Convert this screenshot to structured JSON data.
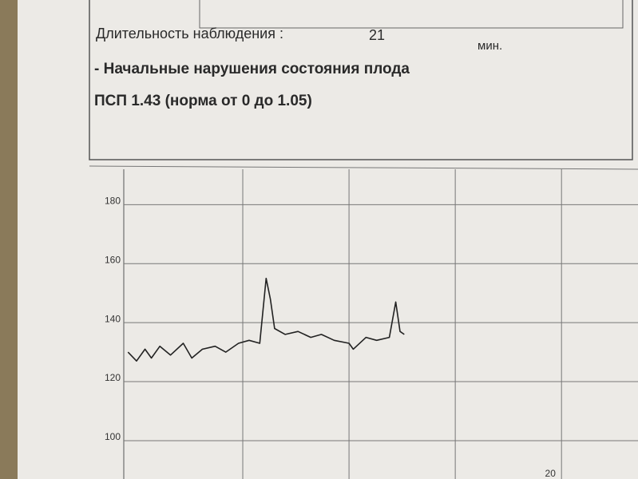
{
  "header": {
    "duration_label": "Длительность наблюдения :",
    "duration_value": "21",
    "duration_unit": "мин.",
    "conclusion": "- Начальные нарушения состояния плода",
    "index": "ПСП 1.43 (норма от 0 до 1.05)"
  },
  "chart_data": {
    "type": "line",
    "x": [
      9.8,
      10.0,
      10.2,
      10.35,
      10.55,
      10.8,
      11.1,
      11.3,
      11.55,
      11.85,
      12.1,
      12.4,
      12.65,
      12.9,
      13.05,
      13.15,
      13.25,
      13.5,
      13.8,
      14.1,
      14.35,
      14.65,
      15.0,
      15.1,
      15.4,
      15.65,
      15.95,
      16.1,
      16.2,
      16.3
    ],
    "series": [
      {
        "color": "#222222",
        "values": [
          130,
          127,
          131,
          128,
          132,
          129,
          133,
          128,
          131,
          132,
          130,
          133,
          134,
          133,
          155,
          148,
          138,
          136,
          137,
          135,
          136,
          134,
          133,
          131,
          135,
          134,
          135,
          147,
          137,
          136
        ]
      }
    ],
    "xlim": [
      9.7,
      21.8
    ],
    "xticks": [
      20
    ],
    "xgrid": [
      12.5,
      15,
      17.5,
      20
    ],
    "ylim": [
      87,
      192
    ],
    "yticks": [
      100,
      120,
      140,
      160,
      180
    ],
    "grid": true
  }
}
